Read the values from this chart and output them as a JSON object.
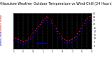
{
  "title": "Milwaukee Weather Outdoor Temperature vs Wind Chill (24 Hours)",
  "title_fontsize": 3.5,
  "background_color": "#ffffff",
  "plot_bg_color": "#000000",
  "grid_color": "#555555",
  "temp_color": "#ff0000",
  "windchill_color": "#0000ff",
  "legend_temp": "Outdoor Temp",
  "legend_wc": "Wind Chill",
  "legend_fontsize": 2.8,
  "xlim": [
    0,
    48
  ],
  "ylim": [
    -5,
    45
  ],
  "ytick_vals": [
    0,
    5,
    10,
    15,
    20,
    25,
    30,
    35,
    40,
    45
  ],
  "ytick_labels": [
    "0",
    "5",
    "10",
    "15",
    "20",
    "25",
    "30",
    "35",
    "40",
    "45"
  ],
  "xtick_positions": [
    0,
    3,
    6,
    9,
    12,
    15,
    18,
    21,
    24,
    27,
    30,
    33,
    36,
    39,
    42,
    45,
    48
  ],
  "xtick_labels": [
    "1",
    "",
    "5",
    "",
    "9",
    "",
    "1",
    "",
    "5",
    "",
    "9",
    "",
    "1",
    "",
    "5",
    "",
    "9"
  ],
  "temp_x": [
    0,
    1,
    2,
    3,
    4,
    5,
    6,
    7,
    8,
    9,
    10,
    11,
    12,
    13,
    14,
    15,
    16,
    17,
    18,
    19,
    20,
    21,
    22,
    23,
    24,
    25,
    26,
    27,
    28,
    29,
    30,
    31,
    32,
    33,
    34,
    35,
    36,
    37,
    38,
    39,
    40,
    41,
    42,
    43,
    44,
    45,
    46,
    47
  ],
  "temp_y": [
    12,
    11,
    10,
    9,
    8,
    7,
    6,
    7,
    8,
    10,
    13,
    15,
    18,
    21,
    24,
    27,
    30,
    33,
    36,
    38,
    40,
    39,
    37,
    35,
    32,
    28,
    24,
    20,
    17,
    14,
    11,
    9,
    8,
    7,
    8,
    9,
    10,
    12,
    14,
    17,
    20,
    24,
    28,
    32,
    36,
    38,
    40,
    41
  ],
  "windchill_x": [
    0,
    1,
    2,
    3,
    4,
    5,
    6,
    7,
    8,
    9,
    10,
    11,
    12,
    13,
    14,
    15,
    16,
    17,
    18,
    19,
    20,
    21,
    22,
    23,
    24,
    25,
    26,
    27,
    28,
    29,
    30,
    31,
    32,
    33,
    34,
    35,
    36,
    37,
    38,
    39,
    40,
    41,
    42,
    43,
    44,
    45,
    46,
    47
  ],
  "windchill_y": [
    8,
    7,
    6,
    5,
    4,
    3,
    2,
    3,
    4,
    6,
    9,
    11,
    14,
    17,
    20,
    23,
    26,
    29,
    32,
    34,
    36,
    35,
    33,
    31,
    28,
    24,
    20,
    16,
    13,
    10,
    7,
    5,
    4,
    3,
    4,
    5,
    6,
    8,
    10,
    13,
    16,
    20,
    24,
    28,
    32,
    34,
    36,
    37
  ],
  "flat_line_x": [
    14,
    20
  ],
  "flat_line_y": [
    3,
    3
  ],
  "marker_size": 1.2,
  "line_width": 0.8
}
